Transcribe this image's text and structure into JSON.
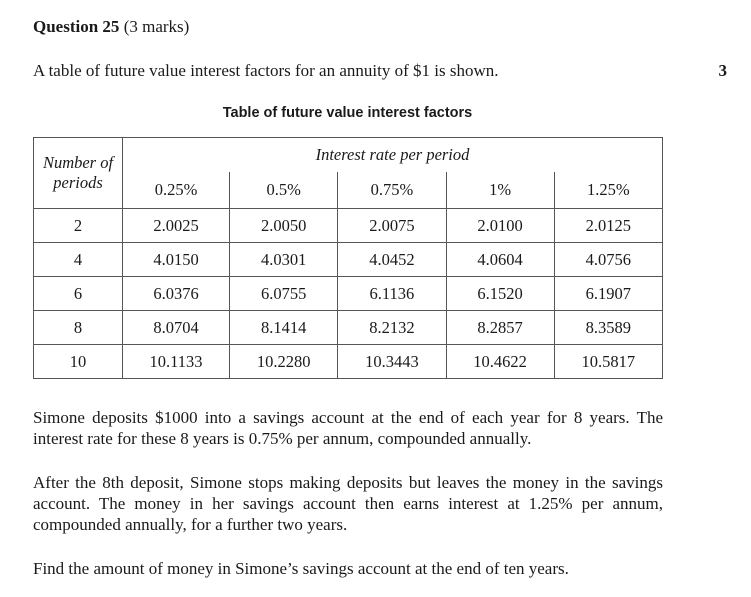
{
  "question": {
    "label": "Question 25",
    "marks": "(3 marks)",
    "marks_margin": "3",
    "intro": "A table of future value interest factors for an annuity of $1 is shown."
  },
  "table": {
    "title": "Table of future value interest factors",
    "row_header": "Number of periods",
    "col_header": "Interest rate per period",
    "rates": [
      "0.25%",
      "0.5%",
      "0.75%",
      "1%",
      "1.25%"
    ],
    "rows": [
      {
        "n": "2",
        "values": [
          "2.0025",
          "2.0050",
          "2.0075",
          "2.0100",
          "2.0125"
        ]
      },
      {
        "n": "4",
        "values": [
          "4.0150",
          "4.0301",
          "4.0452",
          "4.0604",
          "4.0756"
        ]
      },
      {
        "n": "6",
        "values": [
          "6.0376",
          "6.0755",
          "6.1136",
          "6.1520",
          "6.1907"
        ]
      },
      {
        "n": "8",
        "values": [
          "8.0704",
          "8.1414",
          "8.2132",
          "8.2857",
          "8.3589"
        ]
      },
      {
        "n": "10",
        "values": [
          "10.1133",
          "10.2280",
          "10.3443",
          "10.4622",
          "10.5817"
        ]
      }
    ]
  },
  "paragraphs": {
    "p1": "Simone deposits $1000 into a savings account at the end of each year for 8 years. The interest rate for these 8 years is 0.75% per annum, compounded annually.",
    "p2": "After the 8th deposit, Simone stops making deposits but leaves the money in the savings account. The money in her savings account then earns interest at 1.25% per annum, compounded annually, for a further two years.",
    "p3": "Find the amount of money in Simone’s savings account at the end of ten years."
  }
}
